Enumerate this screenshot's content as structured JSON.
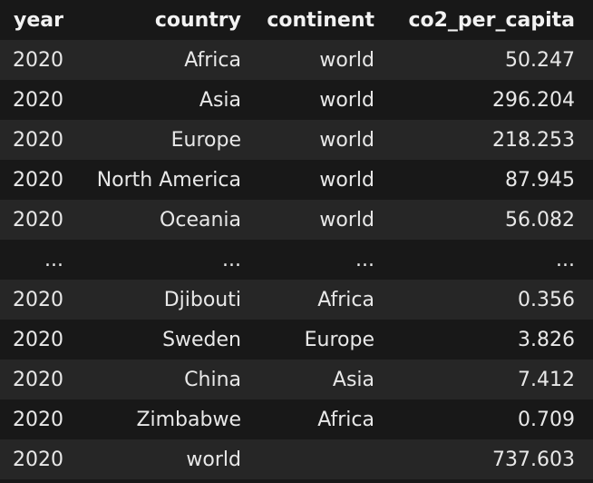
{
  "table": {
    "columns": [
      "year",
      "country",
      "continent",
      "co2_per_capita"
    ],
    "rows": [
      [
        "2020",
        "Africa",
        "world",
        "50.247"
      ],
      [
        "2020",
        "Asia",
        "world",
        "296.204"
      ],
      [
        "2020",
        "Europe",
        "world",
        "218.253"
      ],
      [
        "2020",
        "North America",
        "world",
        "87.945"
      ],
      [
        "2020",
        "Oceania",
        "world",
        "56.082"
      ],
      [
        "...",
        "...",
        "...",
        "..."
      ],
      [
        "2020",
        "Djibouti",
        "Africa",
        "0.356"
      ],
      [
        "2020",
        "Sweden",
        "Europe",
        "3.826"
      ],
      [
        "2020",
        "China",
        "Asia",
        "7.412"
      ],
      [
        "2020",
        "Zimbabwe",
        "Africa",
        "0.709"
      ],
      [
        "2020",
        "world",
        "",
        "737.603"
      ]
    ]
  }
}
